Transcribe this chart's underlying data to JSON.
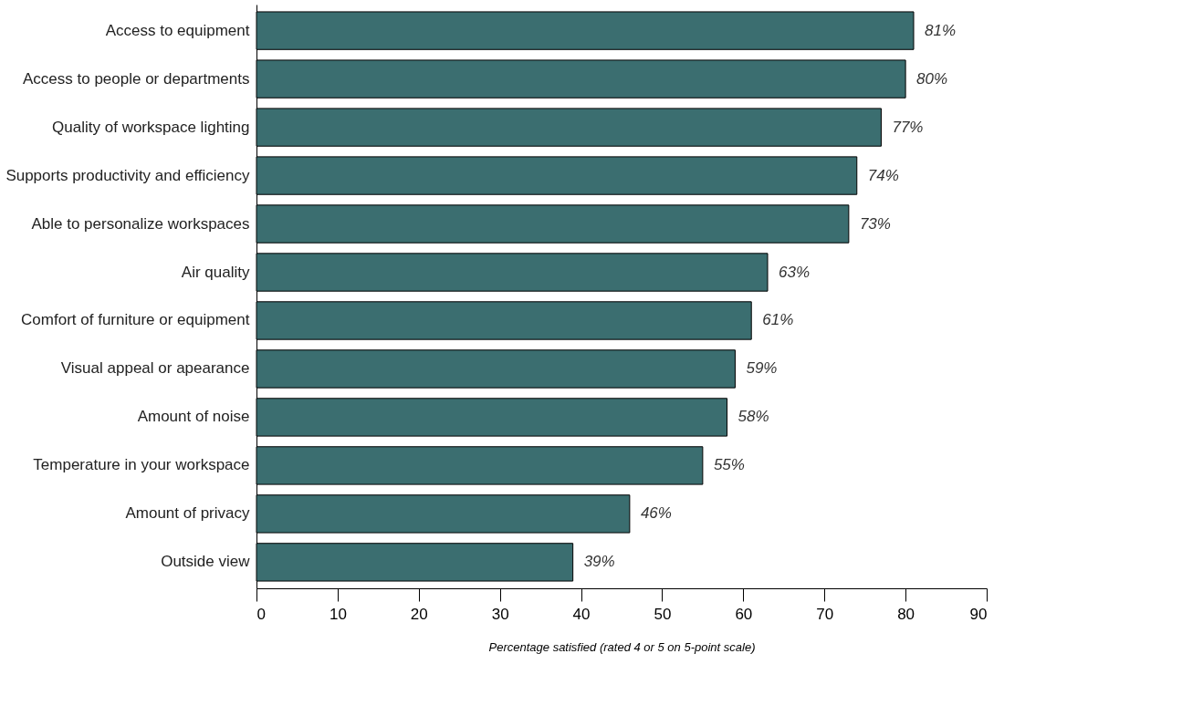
{
  "chart_data": {
    "type": "bar",
    "orientation": "horizontal",
    "xlabel": "Percentage satisfied (rated 4 or 5 on 5-point scale)",
    "categories": [
      "Access to equipment",
      "Access to people or departments",
      "Quality of workspace lighting",
      "Supports productivity and efficiency",
      "Able to personalize workspaces ",
      "Air quality",
      "Comfort of furniture or equipment",
      "Visual appeal or apearance",
      "Amount of noise",
      "Temperature in your workspace",
      "Amount of privacy",
      "Outside view"
    ],
    "values": [
      81,
      80,
      77,
      74,
      73,
      63,
      61,
      59,
      58,
      55,
      46,
      39
    ],
    "value_labels": [
      "81%",
      "80%",
      "77%",
      "74%",
      "73%",
      "63%",
      "61%",
      "59%",
      "58%",
      "55%",
      "46%",
      "39%"
    ],
    "color": "#3b6e70",
    "xlim": [
      0,
      90
    ],
    "xticks": [
      0,
      10,
      20,
      30,
      40,
      50,
      60,
      70,
      80,
      90
    ],
    "grid": false
  }
}
